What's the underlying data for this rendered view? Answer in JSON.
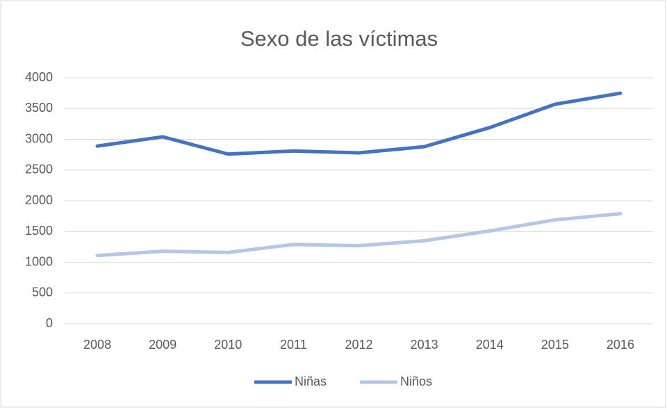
{
  "chart_data": {
    "type": "line",
    "title": "Sexo de las víctimas",
    "categories": [
      "2008",
      "2009",
      "2010",
      "2011",
      "2012",
      "2013",
      "2014",
      "2015",
      "2016"
    ],
    "series": [
      {
        "name": "Niñas",
        "color": "#4472c4",
        "values": [
          2890,
          3040,
          2760,
          2810,
          2780,
          2880,
          3190,
          3570,
          3750
        ]
      },
      {
        "name": "Niños",
        "color": "#b4c7e7",
        "values": [
          1110,
          1180,
          1160,
          1290,
          1270,
          1350,
          1510,
          1690,
          1790
        ]
      }
    ],
    "ylim": [
      0,
      4000
    ],
    "yticks": [
      0,
      500,
      1000,
      1500,
      2000,
      2500,
      3000,
      3500,
      4000
    ],
    "grid": true,
    "legend": "bottom"
  }
}
